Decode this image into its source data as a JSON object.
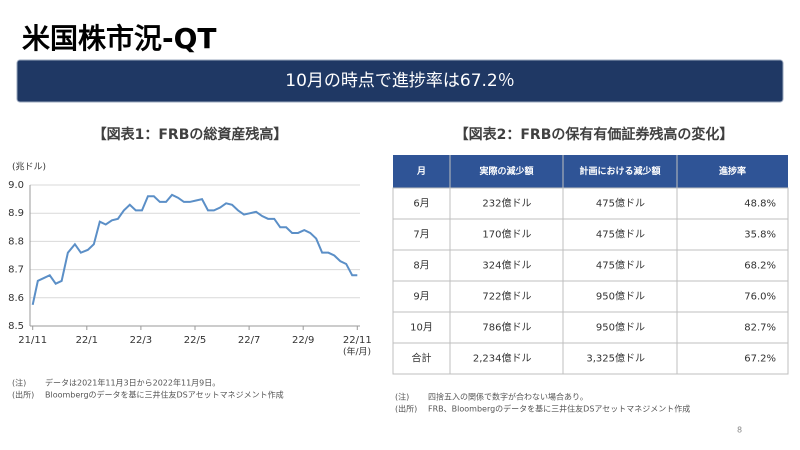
{
  "header": {
    "title": "米国株市況-QT"
  },
  "banner": {
    "text": "10月の時点で進捗率は67.2％"
  },
  "chart_data": {
    "type": "line",
    "title": "【図表1：FRBの総資産残高】",
    "y_unit": "(兆ドル)",
    "x_unit": "(年/月)",
    "color": "#5b8fc7",
    "grid": true,
    "x": [
      0,
      0.19,
      0.41,
      0.63,
      0.85,
      1.07,
      1.3,
      1.56,
      1.78,
      2.04,
      2.26,
      2.48,
      2.7,
      2.93,
      3.15,
      3.37,
      3.59,
      3.81,
      4.04,
      4.26,
      4.48,
      4.7,
      4.93,
      5.15,
      5.37,
      5.59,
      5.81,
      6.04,
      6.26,
      6.48,
      6.7,
      6.93,
      7.15,
      7.37,
      7.59,
      7.81,
      8.04,
      8.26,
      8.48,
      8.7,
      8.93,
      9.15,
      9.37,
      9.59,
      9.81,
      10.04,
      10.26,
      10.48,
      10.7,
      10.93,
      11.15,
      11.37,
      11.59,
      11.81,
      12
    ],
    "values": [
      8.575,
      8.66,
      8.67,
      8.68,
      8.65,
      8.66,
      8.76,
      8.79,
      8.76,
      8.77,
      8.79,
      8.87,
      8.86,
      8.875,
      8.88,
      8.91,
      8.93,
      8.91,
      8.91,
      8.96,
      8.96,
      8.94,
      8.94,
      8.965,
      8.955,
      8.94,
      8.94,
      8.945,
      8.95,
      8.91,
      8.91,
      8.92,
      8.935,
      8.93,
      8.91,
      8.895,
      8.9,
      8.905,
      8.89,
      8.88,
      8.88,
      8.85,
      8.85,
      8.83,
      8.83,
      8.84,
      8.83,
      8.81,
      8.76,
      8.76,
      8.75,
      8.73,
      8.72,
      8.68,
      8.68
    ],
    "xlim": [
      -0.1,
      12.1
    ],
    "xticks": [
      {
        "value": 0,
        "label": "21/11"
      },
      {
        "value": 2,
        "label": "22/1"
      },
      {
        "value": 4,
        "label": "22/3"
      },
      {
        "value": 6,
        "label": "22/5"
      },
      {
        "value": 8,
        "label": "22/7"
      },
      {
        "value": 10,
        "label": "22/9"
      },
      {
        "value": 12,
        "label": "22/11"
      }
    ],
    "ylim": [
      8.5,
      9.0
    ],
    "yticks": [
      8.5,
      8.6,
      8.7,
      8.8,
      8.9,
      {
        "value": 9,
        "label": "9.0"
      }
    ]
  },
  "table": {
    "title": "【図表2：FRBの保有有価証券残高の変化】",
    "columns": [
      "月",
      "実際の減少額",
      "計画における減少額",
      "進捗率"
    ],
    "rows": [
      [
        "6月",
        "232億ドル",
        "475億ドル",
        "48.8%"
      ],
      [
        "7月",
        "170億ドル",
        "475億ドル",
        "35.8%"
      ],
      [
        "8月",
        "324億ドル",
        "475億ドル",
        "68.2%"
      ],
      [
        "9月",
        "722億ドル",
        "950億ドル",
        "76.0%"
      ],
      [
        "10月",
        "786億ドル",
        "950億ドル",
        "82.7%"
      ],
      [
        "合計",
        "2,234億ドル",
        "3,325億ドル",
        "67.2%"
      ]
    ]
  },
  "notes_left": [
    [
      "(注)",
      "データは2021年11月3日から2022年11月9日。"
    ],
    [
      "(出所)",
      "Bloombergのデータを基に三井住友DSアセットマネジメント作成"
    ]
  ],
  "notes_right": [
    [
      "(注)",
      "四捨五入の関係で数字が合わない場合あり。"
    ],
    [
      "(出所)",
      "FRB、Bloombergのデータを基に三井住友DSアセットマネジメント作成"
    ]
  ],
  "page_number": "8"
}
